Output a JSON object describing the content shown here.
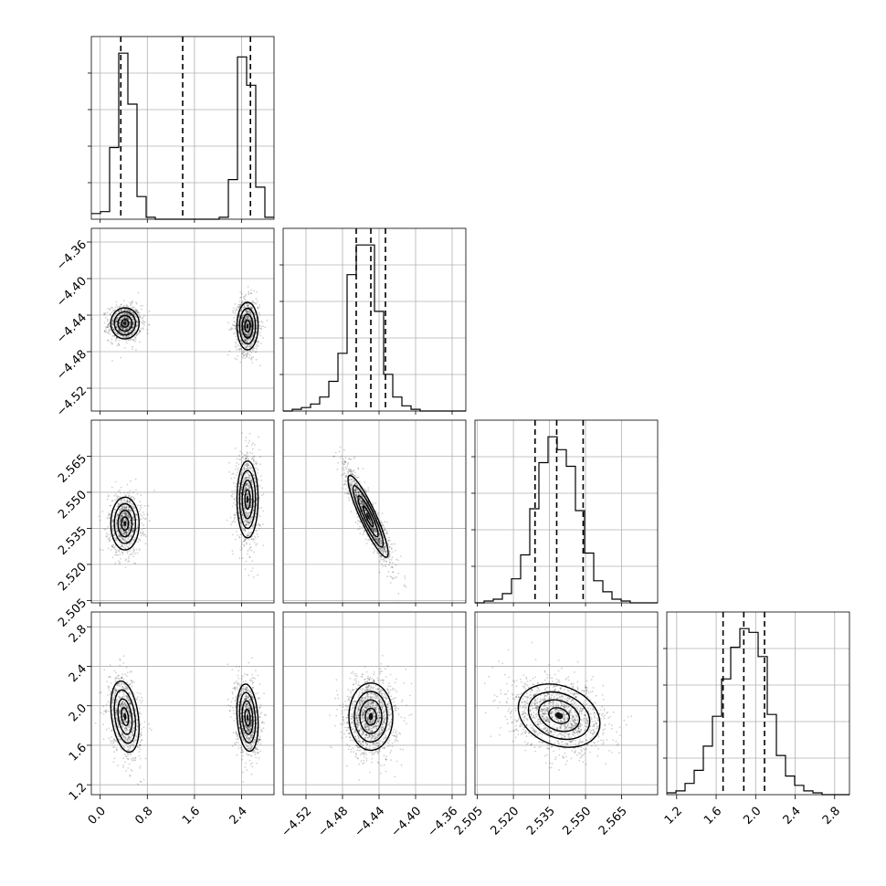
{
  "chart_data": {
    "type": "corner",
    "grid": true,
    "parameters": [
      {
        "index": 0,
        "range": [
          -0.15,
          2.95
        ],
        "ticks": [
          0.0,
          0.8,
          1.6,
          2.4
        ],
        "tick_labels": [
          "0.0",
          "0.8",
          "1.6",
          "2.4"
        ]
      },
      {
        "index": 1,
        "range": [
          -4.545,
          -4.345
        ],
        "ticks": [
          -4.52,
          -4.48,
          -4.44,
          -4.4,
          -4.36
        ],
        "tick_labels": [
          "−4.52",
          "−4.48",
          "−4.44",
          "−4.40",
          "−4.36"
        ]
      },
      {
        "index": 2,
        "range": [
          2.504,
          2.58
        ],
        "ticks": [
          2.505,
          2.52,
          2.535,
          2.55,
          2.565
        ],
        "tick_labels": [
          "2.505",
          "2.520",
          "2.535",
          "2.550",
          "2.565"
        ]
      },
      {
        "index": 3,
        "range": [
          1.1,
          2.95
        ],
        "ticks": [
          1.2,
          1.6,
          2.0,
          2.4,
          2.8
        ],
        "tick_labels": [
          "1.2",
          "1.6",
          "2.0",
          "2.4",
          "2.8"
        ]
      }
    ],
    "histograms": [
      {
        "param": 0,
        "quantiles": [
          0.35,
          1.4,
          2.55
        ],
        "bin_edges": [
          -0.15,
          0.005,
          0.16,
          0.315,
          0.47,
          0.625,
          0.78,
          0.935,
          1.09,
          1.245,
          1.4,
          1.555,
          1.71,
          1.865,
          2.02,
          2.175,
          2.33,
          2.485,
          2.64,
          2.795,
          2.95
        ],
        "counts": [
          0.03,
          0.04,
          0.38,
          0.88,
          0.61,
          0.12,
          0.01,
          0,
          0,
          0,
          0,
          0,
          0,
          0,
          0.01,
          0.21,
          0.86,
          0.71,
          0.17,
          0.01
        ]
      },
      {
        "param": 1,
        "quantiles": [
          -4.465,
          -4.449,
          -4.433
        ],
        "bin_edges": [
          -4.545,
          -4.535,
          -4.525,
          -4.515,
          -4.505,
          -4.495,
          -4.485,
          -4.475,
          -4.465,
          -4.455,
          -4.445,
          -4.435,
          -4.425,
          -4.415,
          -4.405,
          -4.395,
          -4.385,
          -4.375,
          -4.365,
          -4.355,
          -4.345
        ],
        "counts": [
          0,
          0.01,
          0.02,
          0.04,
          0.08,
          0.17,
          0.33,
          0.78,
          0.95,
          0.95,
          0.57,
          0.21,
          0.08,
          0.03,
          0.01,
          0,
          0,
          0,
          0,
          0
        ]
      },
      {
        "param": 2,
        "quantiles": [
          2.529,
          2.538,
          2.549
        ],
        "bin_edges": [
          2.504,
          2.5078,
          2.5116,
          2.5154,
          2.5192,
          2.523,
          2.5268,
          2.5306,
          2.5344,
          2.5382,
          2.542,
          2.5458,
          2.5496,
          2.5534,
          2.5572,
          2.561,
          2.5648,
          2.5686,
          2.5724,
          2.5762,
          2.58
        ],
        "counts": [
          0,
          0.01,
          0.02,
          0.05,
          0.13,
          0.26,
          0.51,
          0.76,
          0.9,
          0.83,
          0.74,
          0.5,
          0.27,
          0.12,
          0.06,
          0.02,
          0.01,
          0,
          0,
          0
        ]
      },
      {
        "param": 3,
        "quantiles": [
          1.67,
          1.88,
          2.09
        ],
        "bin_edges": [
          1.1,
          1.1925,
          1.285,
          1.3775,
          1.47,
          1.5625,
          1.655,
          1.7475,
          1.84,
          1.9325,
          2.025,
          2.1175,
          2.21,
          2.3025,
          2.395,
          2.4875,
          2.58,
          2.6725,
          2.765,
          2.8575,
          2.95
        ],
        "counts": [
          0.01,
          0.02,
          0.06,
          0.13,
          0.26,
          0.42,
          0.62,
          0.79,
          0.89,
          0.87,
          0.74,
          0.43,
          0.21,
          0.1,
          0.05,
          0.02,
          0.01,
          0,
          0,
          0
        ]
      }
    ],
    "pairs": [
      {
        "x_param": 0,
        "y_param": 1,
        "modes": [
          {
            "cx": 0.42,
            "cy": -4.449,
            "sx": 0.12,
            "sy": 0.0085,
            "rho": 0.0
          },
          {
            "cx": 2.5,
            "cy": -4.452,
            "sx": 0.09,
            "sy": 0.013,
            "rho": 0.0
          }
        ]
      },
      {
        "x_param": 0,
        "y_param": 2,
        "modes": [
          {
            "cx": 0.42,
            "cy": 2.537,
            "sx": 0.12,
            "sy": 0.0055,
            "rho": 0.0
          },
          {
            "cx": 2.5,
            "cy": 2.547,
            "sx": 0.09,
            "sy": 0.008,
            "rho": 0.0
          }
        ]
      },
      {
        "x_param": 0,
        "y_param": 3,
        "modes": [
          {
            "cx": 0.42,
            "cy": 1.89,
            "sx": 0.12,
            "sy": 0.18,
            "rho": -0.3
          },
          {
            "cx": 2.5,
            "cy": 1.88,
            "sx": 0.09,
            "sy": 0.17,
            "rho": -0.2
          }
        ]
      },
      {
        "x_param": 1,
        "y_param": 2,
        "modes": [
          {
            "cx": -4.452,
            "cy": 2.54,
            "sx": 0.011,
            "sy": 0.0085,
            "rho": -0.9
          }
        ]
      },
      {
        "x_param": 1,
        "y_param": 3,
        "modes": [
          {
            "cx": -4.449,
            "cy": 1.89,
            "sx": 0.012,
            "sy": 0.17,
            "rho": 0.0
          }
        ]
      },
      {
        "x_param": 2,
        "y_param": 3,
        "modes": [
          {
            "cx": 2.539,
            "cy": 1.9,
            "sx": 0.0085,
            "sy": 0.16,
            "rho": -0.25
          }
        ]
      }
    ]
  }
}
